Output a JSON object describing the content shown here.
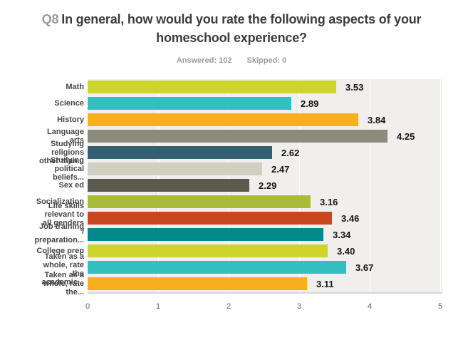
{
  "header": {
    "question_number": "Q8",
    "title_line1": "In general, how would you rate the following aspects of your",
    "title_line2": "homeschool experience?",
    "answered_label": "Answered: 102",
    "skipped_label": "Skipped: 0"
  },
  "chart_data": {
    "type": "bar",
    "orientation": "horizontal",
    "title": "Q8 In general, how would you rate the following aspects of your homeschool experience?",
    "subtitle": "Answered: 102  Skipped: 0",
    "categories": [
      "Math",
      "Science",
      "History",
      "Language arts",
      "Studying religions other than...",
      "Studying political beliefs...",
      "Sex ed",
      "Socialization",
      "Life skills relevant to all genders / preparation...",
      "Job training",
      "College prep",
      "Taken as a whole, rate the academic...",
      "Taken as a whole, rate the..."
    ],
    "category_label_lines": [
      [
        "Math"
      ],
      [
        "Science"
      ],
      [
        "History"
      ],
      [
        "Language",
        "arts"
      ],
      [
        "Studying",
        "religions",
        "other than..."
      ],
      [
        "Studying",
        "political",
        "beliefs..."
      ],
      [
        "Sex ed"
      ],
      [
        "Socialization"
      ],
      [
        "Life skills",
        "relevant to",
        "all genders",
        "/",
        "preparation..."
      ],
      [
        "Job training"
      ],
      [
        "College prep"
      ],
      [
        "Taken as a",
        "whole, rate",
        "the",
        "academic..."
      ],
      [
        "Taken as a",
        "whole, rate",
        "the..."
      ]
    ],
    "values": [
      3.53,
      2.89,
      3.84,
      4.25,
      2.62,
      2.47,
      2.29,
      3.16,
      3.46,
      3.34,
      3.4,
      3.67,
      3.11
    ],
    "value_labels": [
      "3.53",
      "2.89",
      "3.84",
      "4.25",
      "2.62",
      "2.47",
      "2.29",
      "3.16",
      "3.46",
      "3.34",
      "3.40",
      "3.67",
      "3.11"
    ],
    "bar_colors": [
      "#cdd42c",
      "#34bebd",
      "#f8af1e",
      "#8c8b7d",
      "#33606f",
      "#d1cec2",
      "#5c5a4d",
      "#a9bc39",
      "#ca461e",
      "#008a8c",
      "#cdd42c",
      "#34bebd",
      "#f8af1e"
    ],
    "label_dy": [
      0,
      0,
      0,
      0,
      0,
      0,
      0,
      0,
      7,
      -11,
      0,
      3,
      0
    ],
    "xlim": [
      0,
      5
    ],
    "x_ticks": [
      "0",
      "1",
      "2",
      "3",
      "4",
      "5"
    ],
    "grid": true,
    "legend": "none",
    "plot_bg": "#f0efed"
  },
  "colors": {
    "question_number": "#9a9a9a",
    "title_text": "#3c3c3c",
    "subtitle_text": "#9b9b9b",
    "axis_text": "#666666",
    "category_text": "#454545",
    "value_text": "#151515",
    "plot_background": "#f0efed",
    "grid_line": "#ffffff",
    "axis_line": "#d8d6d2"
  }
}
